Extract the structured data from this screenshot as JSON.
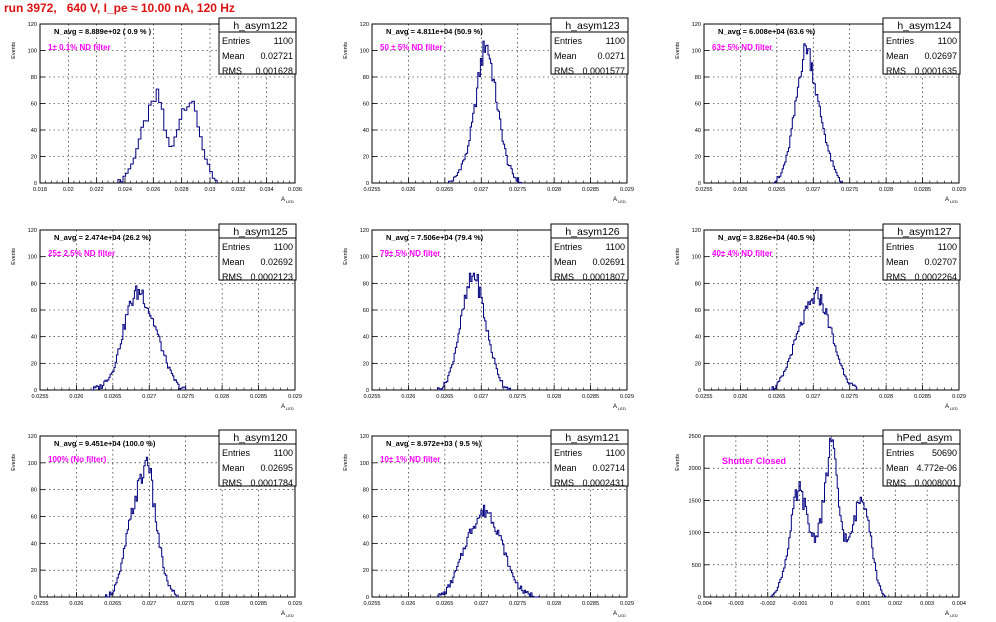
{
  "page": {
    "title": "run 3972,   640 V, I_pe ≈ 10.00 nA, 120 Hz"
  },
  "colors": {
    "histogram": "#000080",
    "note": "#ff00ff",
    "title": "#dd1111",
    "axis": "#000000"
  },
  "common": {
    "ylabel": "Events",
    "xlabel": "A",
    "xlabel_sub": "LED",
    "stat_labels": [
      "Entries",
      "Mean",
      "RMS"
    ]
  },
  "chart_data": [
    {
      "type": "bar",
      "name": "h_asym122",
      "header": "N_avg = 8.889e+02 ( 0.9 % )",
      "note": "1± 0.1% ND filter",
      "stats": {
        "entries": "1100",
        "mean": "0.02721",
        "rms": "0.001628"
      },
      "xlim": [
        0.018,
        0.036
      ],
      "ylim": [
        0,
        120
      ],
      "xticks": [
        "0.018",
        "0.02",
        "0.022",
        "0.024",
        "0.026",
        "0.028",
        "0.03",
        "0.032",
        "0.034",
        "0.036"
      ],
      "yticks": [
        "0",
        "20",
        "40",
        "60",
        "80",
        "100",
        "120"
      ],
      "bin_width": 0.00018,
      "points": [
        [
          0.0235,
          0
        ],
        [
          0.0239,
          4
        ],
        [
          0.0245,
          14
        ],
        [
          0.025,
          32
        ],
        [
          0.0255,
          48
        ],
        [
          0.026,
          60
        ],
        [
          0.0263,
          66
        ],
        [
          0.0266,
          58
        ],
        [
          0.0269,
          36
        ],
        [
          0.0273,
          24
        ],
        [
          0.0277,
          42
        ],
        [
          0.0282,
          60
        ],
        [
          0.0286,
          62
        ],
        [
          0.029,
          52
        ],
        [
          0.0293,
          38
        ],
        [
          0.0297,
          18
        ],
        [
          0.0301,
          6
        ],
        [
          0.0305,
          0
        ]
      ]
    },
    {
      "type": "bar",
      "name": "h_asym123",
      "header": "N_avg = 4.811e+04 (50.9 %)",
      "note": "50 ± 5% ND filter",
      "stats": {
        "entries": "1100",
        "mean": "0.0271",
        "rms": "0.0001577"
      },
      "xlim": [
        0.0255,
        0.029
      ],
      "ylim": [
        0,
        120
      ],
      "xticks": [
        "0.0255",
        "0.026",
        "0.0265",
        "0.027",
        "0.0275",
        "0.028",
        "0.0285",
        "0.029"
      ],
      "yticks": [
        "0",
        "20",
        "40",
        "60",
        "80",
        "100",
        "120"
      ],
      "bin_width": 1.75e-05,
      "points": [
        [
          0.02655,
          0
        ],
        [
          0.02665,
          4
        ],
        [
          0.0268,
          22
        ],
        [
          0.0269,
          52
        ],
        [
          0.02698,
          85
        ],
        [
          0.02706,
          108
        ],
        [
          0.02712,
          95
        ],
        [
          0.0272,
          66
        ],
        [
          0.02728,
          38
        ],
        [
          0.02736,
          16
        ],
        [
          0.02745,
          5
        ],
        [
          0.02755,
          0
        ]
      ]
    },
    {
      "type": "bar",
      "name": "h_asym124",
      "header": "N_avg = 6.008e+04 (63.6 %)",
      "note": "63± 5% ND filter",
      "stats": {
        "entries": "1100",
        "mean": "0.02697",
        "rms": "0.0001635"
      },
      "xlim": [
        0.0255,
        0.029
      ],
      "ylim": [
        0,
        120
      ],
      "xticks": [
        "0.0255",
        "0.026",
        "0.0265",
        "0.027",
        "0.0275",
        "0.028",
        "0.0285",
        "0.029"
      ],
      "yticks": [
        "0",
        "20",
        "40",
        "60",
        "80",
        "100",
        "120"
      ],
      "bin_width": 1.75e-05,
      "points": [
        [
          0.02645,
          0
        ],
        [
          0.02655,
          5
        ],
        [
          0.02665,
          22
        ],
        [
          0.02675,
          55
        ],
        [
          0.02683,
          88
        ],
        [
          0.02691,
          105
        ],
        [
          0.02698,
          90
        ],
        [
          0.02706,
          62
        ],
        [
          0.02714,
          42
        ],
        [
          0.02722,
          22
        ],
        [
          0.0273,
          9
        ],
        [
          0.0274,
          0
        ]
      ]
    },
    {
      "type": "bar",
      "name": "h_asym125",
      "header": "N_avg = 2.474e+04 (26.2 %)",
      "note": "25± 2.5% ND filter",
      "stats": {
        "entries": "1100",
        "mean": "0.02692",
        "rms": "0.0002123"
      },
      "xlim": [
        0.0255,
        0.029
      ],
      "ylim": [
        0,
        120
      ],
      "xticks": [
        "0.0255",
        "0.026",
        "0.0265",
        "0.027",
        "0.0275",
        "0.028",
        "0.0285",
        "0.029"
      ],
      "yticks": [
        "0",
        "20",
        "40",
        "60",
        "80",
        "100",
        "120"
      ],
      "bin_width": 1.75e-05,
      "points": [
        [
          0.0262,
          0
        ],
        [
          0.02635,
          3
        ],
        [
          0.0265,
          14
        ],
        [
          0.0266,
          34
        ],
        [
          0.0267,
          58
        ],
        [
          0.0268,
          72
        ],
        [
          0.0269,
          74
        ],
        [
          0.02698,
          62
        ],
        [
          0.02708,
          48
        ],
        [
          0.02718,
          30
        ],
        [
          0.0273,
          12
        ],
        [
          0.0274,
          3
        ],
        [
          0.0275,
          0
        ]
      ]
    },
    {
      "type": "bar",
      "name": "h_asym126",
      "header": "N_avg = 7.506e+04 (79.4 %)",
      "note": "79± 5% ND filter",
      "stats": {
        "entries": "1100",
        "mean": "0.02691",
        "rms": "0.0001807"
      },
      "xlim": [
        0.0255,
        0.029
      ],
      "ylim": [
        0,
        120
      ],
      "xticks": [
        "0.0255",
        "0.026",
        "0.0265",
        "0.027",
        "0.0275",
        "0.028",
        "0.0285",
        "0.029"
      ],
      "yticks": [
        "0",
        "20",
        "40",
        "60",
        "80",
        "100",
        "120"
      ],
      "bin_width": 1.75e-05,
      "points": [
        [
          0.0264,
          0
        ],
        [
          0.0265,
          4
        ],
        [
          0.0266,
          18
        ],
        [
          0.02668,
          40
        ],
        [
          0.02676,
          62
        ],
        [
          0.02684,
          80
        ],
        [
          0.02691,
          88
        ],
        [
          0.02699,
          72
        ],
        [
          0.02706,
          50
        ],
        [
          0.02714,
          30
        ],
        [
          0.02722,
          14
        ],
        [
          0.0273,
          4
        ],
        [
          0.0274,
          0
        ]
      ]
    },
    {
      "type": "bar",
      "name": "h_asym127",
      "header": "N_avg = 3.826e+04 (40.5 %)",
      "note": "40± 4% ND filter",
      "stats": {
        "entries": "1100",
        "mean": "0.02707",
        "rms": "0.0002264"
      },
      "xlim": [
        0.0255,
        0.029
      ],
      "ylim": [
        0,
        120
      ],
      "xticks": [
        "0.0255",
        "0.026",
        "0.0265",
        "0.027",
        "0.0275",
        "0.028",
        "0.0285",
        "0.029"
      ],
      "yticks": [
        "0",
        "20",
        "40",
        "60",
        "80",
        "100",
        "120"
      ],
      "bin_width": 1.75e-05,
      "points": [
        [
          0.0264,
          0
        ],
        [
          0.0265,
          3
        ],
        [
          0.0266,
          12
        ],
        [
          0.0267,
          28
        ],
        [
          0.0268,
          44
        ],
        [
          0.0269,
          58
        ],
        [
          0.027,
          68
        ],
        [
          0.02707,
          72
        ],
        [
          0.02715,
          62
        ],
        [
          0.02723,
          48
        ],
        [
          0.0273,
          32
        ],
        [
          0.0274,
          16
        ],
        [
          0.0275,
          5
        ],
        [
          0.0276,
          0
        ]
      ]
    },
    {
      "type": "bar",
      "name": "h_asym120",
      "header": "N_avg = 9.451e+04 (100.0 %)",
      "note": "100% (No filter)",
      "stats": {
        "entries": "1100",
        "mean": "0.02695",
        "rms": "0.0001784"
      },
      "xlim": [
        0.0255,
        0.029
      ],
      "ylim": [
        0,
        120
      ],
      "xticks": [
        "0.0255",
        "0.026",
        "0.0265",
        "0.027",
        "0.0275",
        "0.028",
        "0.0285",
        "0.029"
      ],
      "yticks": [
        "0",
        "20",
        "40",
        "60",
        "80",
        "100",
        "120"
      ],
      "bin_width": 1.75e-05,
      "points": [
        [
          0.0264,
          0
        ],
        [
          0.0265,
          4
        ],
        [
          0.0266,
          18
        ],
        [
          0.02668,
          42
        ],
        [
          0.02676,
          62
        ],
        [
          0.02684,
          80
        ],
        [
          0.02692,
          92
        ],
        [
          0.02698,
          108
        ],
        [
          0.02706,
          70
        ],
        [
          0.02714,
          40
        ],
        [
          0.02722,
          16
        ],
        [
          0.0273,
          5
        ],
        [
          0.0274,
          0
        ]
      ]
    },
    {
      "type": "bar",
      "name": "h_asym121",
      "header": "N_avg = 8.972e+03 ( 9.5 %)",
      "note": "10± 1% ND filter",
      "stats": {
        "entries": "1100",
        "mean": "0.02714",
        "rms": "0.0002431"
      },
      "xlim": [
        0.0255,
        0.029
      ],
      "ylim": [
        0,
        120
      ],
      "xticks": [
        "0.0255",
        "0.026",
        "0.0265",
        "0.027",
        "0.0275",
        "0.028",
        "0.0285",
        "0.029"
      ],
      "yticks": [
        "0",
        "20",
        "40",
        "60",
        "80",
        "100",
        "120"
      ],
      "bin_width": 1.75e-05,
      "points": [
        [
          0.0264,
          0
        ],
        [
          0.0265,
          3
        ],
        [
          0.0266,
          12
        ],
        [
          0.0267,
          26
        ],
        [
          0.0268,
          42
        ],
        [
          0.0269,
          55
        ],
        [
          0.027,
          62
        ],
        [
          0.02708,
          65
        ],
        [
          0.02716,
          58
        ],
        [
          0.02724,
          48
        ],
        [
          0.02732,
          34
        ],
        [
          0.0274,
          20
        ],
        [
          0.0275,
          9
        ],
        [
          0.0276,
          3
        ],
        [
          0.0278,
          0
        ]
      ]
    },
    {
      "type": "bar",
      "name": "hPed_asym",
      "header": "",
      "note": "Shutter Closed",
      "stats": {
        "entries": "50690",
        "mean": "4.772e-06",
        "rms": "0.0008001"
      },
      "xlim": [
        -0.004,
        0.004
      ],
      "ylim": [
        0,
        2500
      ],
      "xticks": [
        "-0.004",
        "-0.003",
        "-0.002",
        "-0.001",
        "0",
        "0.001",
        "0.002",
        "0.003",
        "0.004"
      ],
      "yticks": [
        "0",
        "500",
        "1000",
        "1500",
        "2000",
        "2500"
      ],
      "bin_width": 4e-05,
      "points": [
        [
          -0.0019,
          0
        ],
        [
          -0.0017,
          120
        ],
        [
          -0.0015,
          420
        ],
        [
          -0.0013,
          950
        ],
        [
          -0.00115,
          1500
        ],
        [
          -0.001,
          1660
        ],
        [
          -0.00085,
          1450
        ],
        [
          -0.0007,
          1050
        ],
        [
          -0.0005,
          900
        ],
        [
          -0.0003,
          1300
        ],
        [
          -0.00015,
          1850
        ],
        [
          -5e-05,
          2350
        ],
        [
          0.0,
          2450
        ],
        [
          0.0001,
          2100
        ],
        [
          0.00025,
          1350
        ],
        [
          0.0004,
          950
        ],
        [
          0.00055,
          850
        ],
        [
          0.0007,
          1150
        ],
        [
          0.00085,
          1480
        ],
        [
          0.001,
          1550
        ],
        [
          0.00115,
          1300
        ],
        [
          0.0013,
          700
        ],
        [
          0.00145,
          250
        ],
        [
          0.0016,
          60
        ],
        [
          0.0017,
          0
        ]
      ]
    }
  ]
}
